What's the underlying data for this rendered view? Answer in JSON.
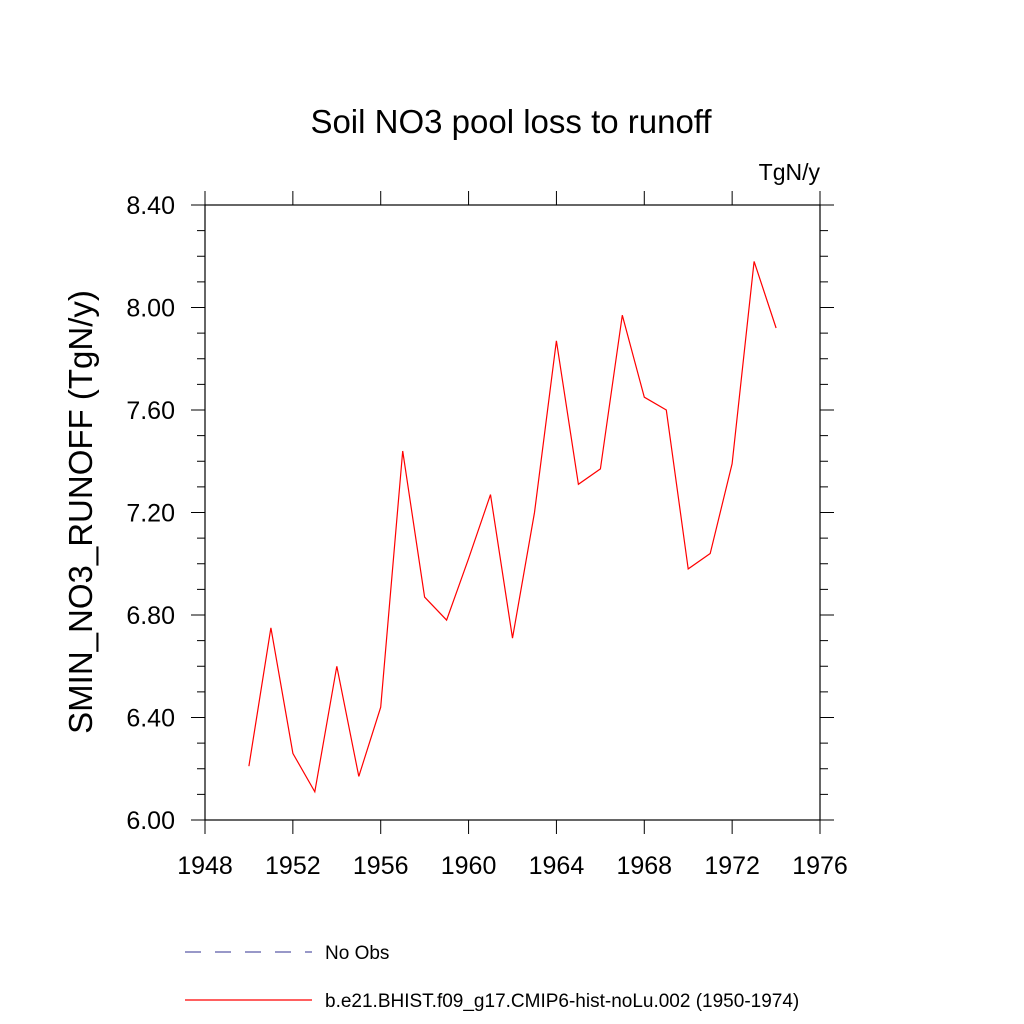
{
  "chart_data": {
    "type": "line",
    "title": "Soil NO3 pool loss to runoff",
    "units": "TgN/y",
    "ylabel": "SMIN_NO3_RUNOFF  (TgN/y)",
    "xlabel": "",
    "xlim": [
      1948,
      1976
    ],
    "ylim": [
      6.0,
      8.4
    ],
    "xticks": [
      1948,
      1952,
      1956,
      1960,
      1964,
      1968,
      1972,
      1976
    ],
    "xtick_labels": [
      "1948",
      "1952",
      "1956",
      "1960",
      "1964",
      "1968",
      "1972",
      "1976"
    ],
    "yticks": [
      6.0,
      6.4,
      6.8,
      7.2,
      7.6,
      8.0,
      8.4
    ],
    "ytick_labels": [
      "6.00",
      "6.40",
      "6.80",
      "7.20",
      "7.60",
      "8.00",
      "8.40"
    ],
    "grid": false,
    "legend_position": "bottom",
    "series": [
      {
        "name": "b.e21.BHIST.f09_g17.CMIP6-hist-noLu.002 (1950-1974)",
        "color": "#ff0000",
        "style": "solid",
        "x": [
          1950,
          1951,
          1952,
          1953,
          1954,
          1955,
          1956,
          1957,
          1958,
          1959,
          1960,
          1961,
          1962,
          1963,
          1964,
          1965,
          1966,
          1967,
          1968,
          1969,
          1970,
          1971,
          1972,
          1973,
          1974
        ],
        "y": [
          6.21,
          6.75,
          6.26,
          6.11,
          6.6,
          6.17,
          6.44,
          7.44,
          6.87,
          6.78,
          7.02,
          7.27,
          6.71,
          7.2,
          7.87,
          7.31,
          7.37,
          7.97,
          7.65,
          7.6,
          6.98,
          7.04,
          7.39,
          8.18,
          7.92
        ]
      }
    ],
    "legend": [
      {
        "label": "No Obs",
        "color": "#5a5aa8",
        "style": "dashed"
      },
      {
        "label": "b.e21.BHIST.f09_g17.CMIP6-hist-noLu.002 (1950-1974)",
        "color": "#ff0000",
        "style": "solid"
      }
    ]
  }
}
